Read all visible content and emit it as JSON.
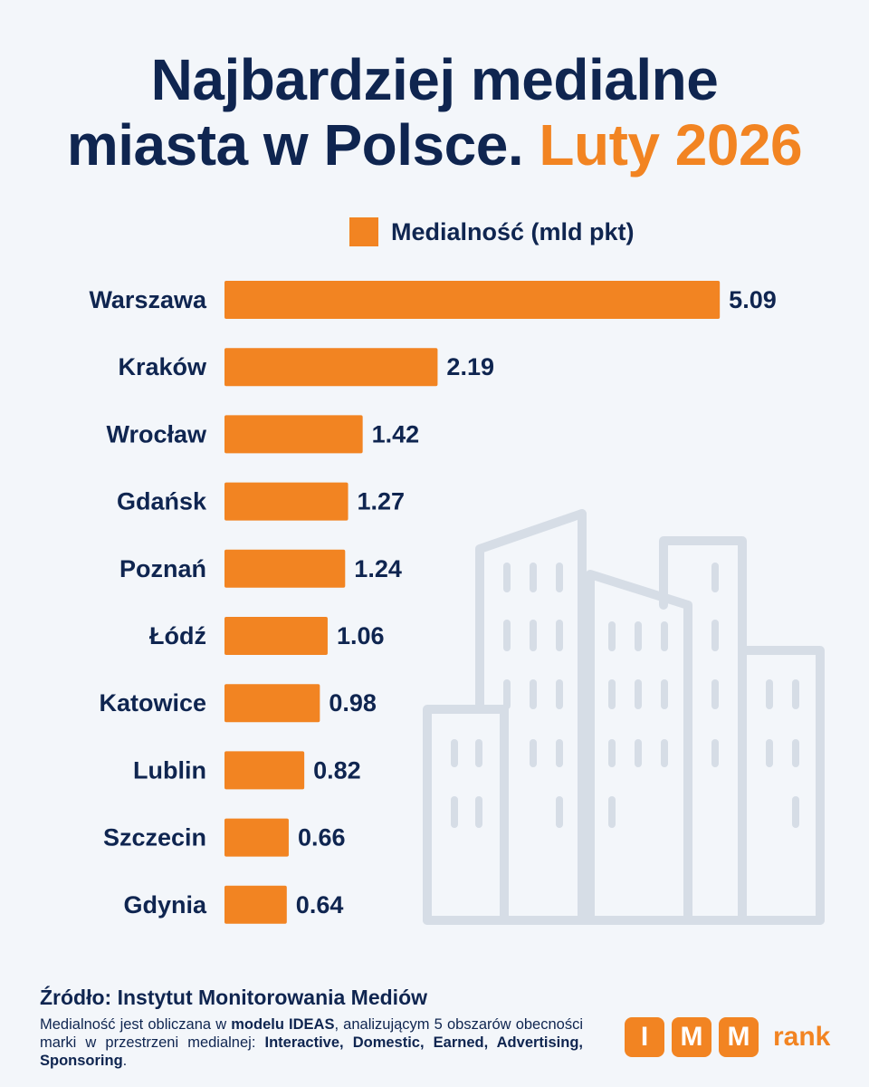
{
  "header": {
    "title_line1": "Najbardziej medialne",
    "title_line2": "miasta w Polsce.",
    "title_highlight": "Luty 2026"
  },
  "colors": {
    "navy": "#0f2550",
    "orange": "#f28422",
    "background": "#f3f6fa",
    "building": "#d6dde6"
  },
  "chart_data": {
    "type": "bar",
    "orientation": "horizontal",
    "categories": [
      "Warszawa",
      "Kraków",
      "Wrocław",
      "Gdańsk",
      "Poznań",
      "Łódź",
      "Katowice",
      "Lublin",
      "Szczecin",
      "Gdynia"
    ],
    "series": [
      {
        "name": "Medialność (mld pkt)",
        "values": [
          5.09,
          2.19,
          1.42,
          1.27,
          1.24,
          1.06,
          0.98,
          0.82,
          0.66,
          0.64
        ]
      }
    ],
    "value_labels": [
      "5.09",
      "2.19",
      "1.42",
      "1.27",
      "1.24",
      "1.06",
      "0.98",
      "0.82",
      "0.66",
      "0.64"
    ],
    "legend_placement": "top",
    "grid": false
  },
  "footer": {
    "source_title": "Źródło: Instytut Monitorowania Mediów",
    "note_part1": "Medialność jest obliczana w ",
    "note_bold1": "modelu IDEAS",
    "note_part2": ", analizującym 5 obszarów obecności marki w przestrzeni medialnej: ",
    "note_bold2": "Interactive, Domestic, Earned, Advertising, Sponsoring",
    "note_part3": "."
  },
  "logo": {
    "letters": [
      "I",
      "M",
      "M"
    ],
    "suffix": "rank"
  }
}
